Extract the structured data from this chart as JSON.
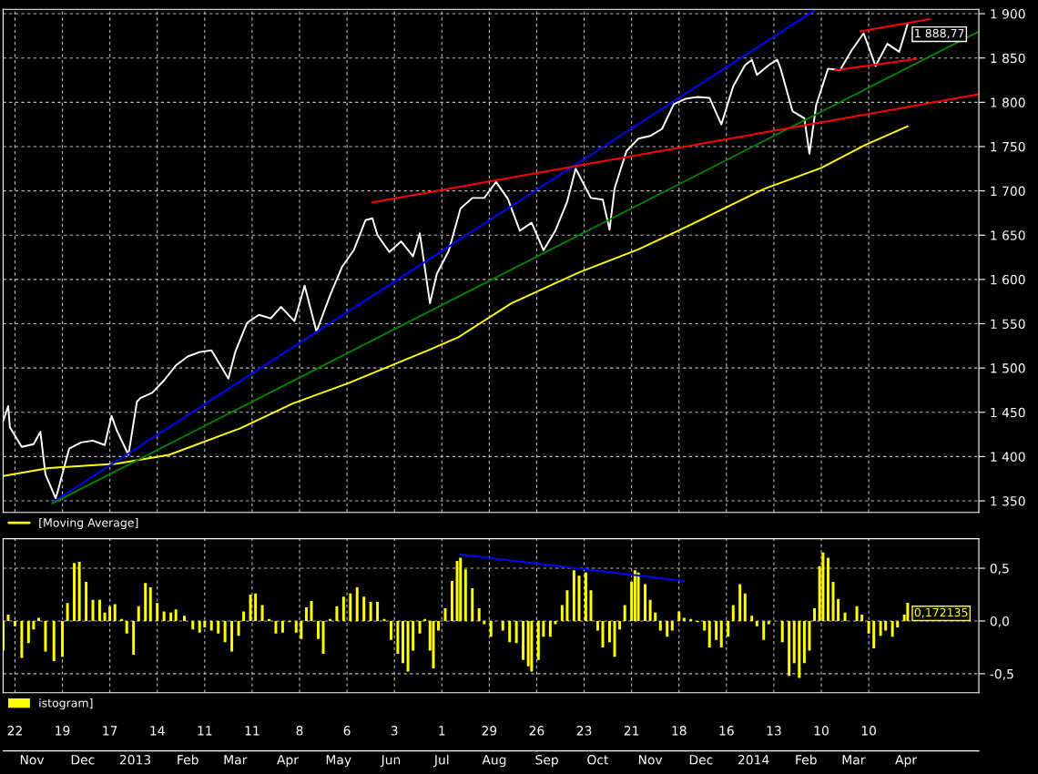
{
  "chart_data": [
    {
      "type": "line",
      "series": [
        {
          "color": "#ffffff",
          "x": [
            "2012-10-15",
            "2012-10-18",
            "2012-10-19",
            "2012-10-26",
            "2012-11-02",
            "2012-11-06",
            "2012-11-09",
            "2012-11-15",
            "2012-11-16",
            "2012-11-23",
            "2012-11-30",
            "2012-12-07",
            "2012-12-14",
            "2012-12-18",
            "2012-12-21",
            "2012-12-28",
            "2013-01-02",
            "2013-01-04",
            "2013-01-11",
            "2013-01-18",
            "2013-01-25",
            "2013-02-01",
            "2013-02-08",
            "2013-02-15",
            "2013-02-25",
            "2013-03-01",
            "2013-03-08",
            "2013-03-15",
            "2013-03-22",
            "2013-03-28",
            "2013-04-05",
            "2013-04-11",
            "2013-04-18",
            "2013-04-26",
            "2013-05-03",
            "2013-05-10",
            "2013-05-17",
            "2013-05-21",
            "2013-05-24",
            "2013-05-31",
            "2013-06-07",
            "2013-06-14",
            "2013-06-18",
            "2013-06-24",
            "2013-06-28",
            "2013-07-05",
            "2013-07-12",
            "2013-07-19",
            "2013-07-26",
            "2013-08-02",
            "2013-08-09",
            "2013-08-16",
            "2013-08-23",
            "2013-08-30",
            "2013-09-06",
            "2013-09-13",
            "2013-09-18",
            "2013-09-27",
            "2013-10-04",
            "2013-10-08",
            "2013-10-11",
            "2013-10-18",
            "2013-10-25",
            "2013-11-01",
            "2013-11-08",
            "2013-11-15",
            "2013-11-22",
            "2013-11-29",
            "2013-12-06",
            "2013-12-13",
            "2013-12-20",
            "2013-12-27",
            "2013-12-31",
            "2014-01-03",
            "2014-01-10",
            "2014-01-15",
            "2014-01-17",
            "2014-01-24",
            "2014-01-31",
            "2014-02-03",
            "2014-02-07",
            "2014-02-14",
            "2014-02-21",
            "2014-02-28",
            "2014-03-07",
            "2014-03-14",
            "2014-03-21",
            "2014-03-28",
            "2014-04-02"
          ],
          "values": [
            1440,
            1457,
            1433,
            1411,
            1414,
            1428,
            1380,
            1353,
            1359,
            1409,
            1416,
            1418,
            1413,
            1446,
            1430,
            1402,
            1462,
            1466,
            1472,
            1486,
            1503,
            1513,
            1518,
            1520,
            1488,
            1518,
            1551,
            1560,
            1556,
            1569,
            1553,
            1593,
            1541,
            1582,
            1614,
            1633,
            1667,
            1669,
            1650,
            1631,
            1643,
            1626,
            1652,
            1573,
            1606,
            1632,
            1680,
            1692,
            1692,
            1710,
            1691,
            1655,
            1664,
            1633,
            1655,
            1688,
            1725,
            1692,
            1690,
            1656,
            1703,
            1745,
            1759,
            1762,
            1770,
            1798,
            1804,
            1806,
            1805,
            1775,
            1818,
            1842,
            1848,
            1831,
            1842,
            1848,
            1838,
            1790,
            1782,
            1742,
            1797,
            1838,
            1836,
            1859,
            1878,
            1841,
            1866,
            1857,
            1888.77
          ]
        },
        {
          "name": "[Moving Average]",
          "color": "#ffff00",
          "x": [
            "2012-10-15",
            "2012-11-11",
            "2012-12-21",
            "2013-01-21",
            "2013-03-04",
            "2013-04-04",
            "2013-05-07",
            "2013-06-23",
            "2013-07-11",
            "2013-08-11",
            "2013-09-20",
            "2013-10-25",
            "2013-11-22",
            "2014-01-07",
            "2014-02-10",
            "2014-03-08",
            "2014-04-02"
          ],
          "values": [
            1378,
            1387,
            1392,
            1402,
            1432,
            1460,
            1483,
            1520,
            1535,
            1573,
            1608,
            1634,
            1659,
            1702,
            1726,
            1752,
            1773
          ]
        },
        {
          "color": "#0000ff",
          "x": [
            "2012-11-13",
            "2014-02-07"
          ],
          "values": [
            1348,
            1905
          ]
        },
        {
          "color": "#008000",
          "x": [
            "2012-11-13",
            "2014-05-14"
          ],
          "values": [
            1347,
            1880
          ]
        },
        {
          "color": "#ff0000",
          "x": [
            "2013-05-21",
            "2014-05-14"
          ],
          "values": [
            1687,
            1809
          ]
        },
        {
          "color": "#ff0000",
          "x": [
            "2014-03-05",
            "2014-04-15"
          ],
          "values": [
            1880,
            1894
          ]
        },
        {
          "color": "#ff0000",
          "x": [
            "2014-02-18",
            "2014-04-07"
          ],
          "values": [
            1836,
            1849
          ]
        }
      ],
      "xlim": [
        "2012-10-15",
        "2014-05-14"
      ],
      "xticks": [
        "2012-10-22",
        "2012-11-19",
        "2012-12-17",
        "2013-01-14",
        "2013-02-11",
        "2013-03-11",
        "2013-04-08",
        "2013-05-06",
        "2013-06-03",
        "2013-07-01",
        "2013-07-29",
        "2013-08-26",
        "2013-09-23",
        "2013-10-21",
        "2013-11-18",
        "2013-12-16",
        "2014-01-13",
        "2014-02-10",
        "2014-03-10"
      ],
      "ylim": [
        1337,
        1905
      ],
      "yticks": [
        {
          "value": 1350,
          "label": "1 350"
        },
        {
          "value": 1400,
          "label": "1 400"
        },
        {
          "value": 1450,
          "label": "1 450"
        },
        {
          "value": 1500,
          "label": "1 500"
        },
        {
          "value": 1550,
          "label": "1 550"
        },
        {
          "value": 1600,
          "label": "1 600"
        },
        {
          "value": 1650,
          "label": "1 650"
        },
        {
          "value": 1700,
          "label": "1 700"
        },
        {
          "value": 1750,
          "label": "1 750"
        },
        {
          "value": 1800,
          "label": "1 800"
        },
        {
          "value": 1850,
          "label": "1 850"
        },
        {
          "value": 1900,
          "label": "1 900"
        }
      ],
      "tick_labels": "y",
      "grid": true,
      "legend": "bottom left",
      "annotations": [
        {
          "text": "1 888,77",
          "x": "2014-04-02",
          "y": 1888.77
        }
      ]
    },
    {
      "type": "bar",
      "series": [
        {
          "name": "istogram]",
          "color": "#ffff00",
          "x": [
            "2012-10-15",
            "2012-10-18",
            "2012-10-22",
            "2012-10-26",
            "2012-10-30",
            "2012-11-02",
            "2012-11-05",
            "2012-11-09",
            "2012-11-14",
            "2012-11-19",
            "2012-11-22",
            "2012-11-26",
            "2012-11-29",
            "2012-12-03",
            "2012-12-07",
            "2012-12-11",
            "2012-12-14",
            "2012-12-17",
            "2012-12-20",
            "2012-12-24",
            "2012-12-27",
            "2012-12-31",
            "2013-01-03",
            "2013-01-07",
            "2013-01-10",
            "2013-01-14",
            "2013-01-18",
            "2013-01-22",
            "2013-01-25",
            "2013-01-30",
            "2013-02-04",
            "2013-02-08",
            "2013-02-11",
            "2013-02-15",
            "2013-02-19",
            "2013-02-23",
            "2013-02-27",
            "2013-03-03",
            "2013-03-06",
            "2013-03-10",
            "2013-03-13",
            "2013-03-17",
            "2013-03-21",
            "2013-03-25",
            "2013-03-29",
            "2013-04-02",
            "2013-04-06",
            "2013-04-09",
            "2013-04-12",
            "2013-04-15",
            "2013-04-19",
            "2013-04-22",
            "2013-04-26",
            "2013-04-30",
            "2013-05-04",
            "2013-05-08",
            "2013-05-12",
            "2013-05-16",
            "2013-05-20",
            "2013-05-24",
            "2013-05-28",
            "2013-06-01",
            "2013-06-05",
            "2013-06-08",
            "2013-06-11",
            "2013-06-14",
            "2013-06-18",
            "2013-06-21",
            "2013-06-24",
            "2013-06-26",
            "2013-06-29",
            "2013-07-03",
            "2013-07-07",
            "2013-07-10",
            "2013-07-12",
            "2013-07-15",
            "2013-07-19",
            "2013-07-23",
            "2013-07-26",
            "2013-07-30",
            "2013-08-02",
            "2013-08-06",
            "2013-08-10",
            "2013-08-14",
            "2013-08-18",
            "2013-08-21",
            "2013-08-23",
            "2013-08-27",
            "2013-08-30",
            "2013-09-03",
            "2013-09-06",
            "2013-09-10",
            "2013-09-13",
            "2013-09-17",
            "2013-09-20",
            "2013-09-24",
            "2013-09-27",
            "2013-10-01",
            "2013-10-04",
            "2013-10-08",
            "2013-10-11",
            "2013-10-14",
            "2013-10-17",
            "2013-10-21",
            "2013-10-23",
            "2013-10-25",
            "2013-10-29",
            "2013-11-01",
            "2013-11-04",
            "2013-11-07",
            "2013-11-11",
            "2013-11-14",
            "2013-11-18",
            "2013-11-21",
            "2013-11-25",
            "2013-11-29",
            "2013-12-03",
            "2013-12-06",
            "2013-12-10",
            "2013-12-13",
            "2013-12-17",
            "2013-12-20",
            "2013-12-24",
            "2013-12-27",
            "2013-12-31",
            "2014-01-03",
            "2014-01-07",
            "2014-01-10",
            "2014-01-15",
            "2014-01-18",
            "2014-01-22",
            "2014-01-25",
            "2014-01-28",
            "2014-01-31",
            "2014-02-03",
            "2014-02-06",
            "2014-02-09",
            "2014-02-11",
            "2014-02-14",
            "2014-02-17",
            "2014-02-20",
            "2014-02-24",
            "2014-02-27",
            "2014-03-03",
            "2014-03-06",
            "2014-03-10",
            "2014-03-13",
            "2014-03-17",
            "2014-03-20",
            "2014-03-24",
            "2014-03-27",
            "2014-03-31",
            "2014-04-02"
          ],
          "values": [
            -0.28,
            0.06,
            -0.05,
            -0.35,
            -0.21,
            -0.08,
            0.03,
            -0.29,
            -0.38,
            -0.34,
            0.17,
            0.55,
            0.56,
            0.37,
            0.2,
            0.2,
            0.08,
            0.14,
            0.16,
            0.02,
            -0.12,
            -0.32,
            0.14,
            0.36,
            0.32,
            0.17,
            0.09,
            0.08,
            0.11,
            0.05,
            -0.08,
            -0.11,
            -0.06,
            -0.09,
            -0.12,
            -0.2,
            -0.29,
            -0.14,
            0.09,
            0.25,
            0.26,
            0.15,
            0.02,
            -0.12,
            -0.11,
            -0.01,
            -0.11,
            -0.17,
            0.13,
            0.19,
            -0.17,
            -0.31,
            0.02,
            0.14,
            0.23,
            0.26,
            0.32,
            0.23,
            0.18,
            0.18,
            0.02,
            -0.18,
            -0.31,
            -0.4,
            -0.48,
            -0.28,
            -0.12,
            0.02,
            -0.28,
            -0.45,
            -0.09,
            0.12,
            0.38,
            0.57,
            0.6,
            0.49,
            0.31,
            0.12,
            -0.03,
            -0.15,
            0.0,
            -0.09,
            -0.2,
            -0.21,
            -0.37,
            -0.43,
            -0.48,
            -0.37,
            -0.15,
            -0.15,
            -0.03,
            0.15,
            0.29,
            0.48,
            0.43,
            0.46,
            0.29,
            -0.09,
            -0.25,
            -0.2,
            -0.34,
            -0.08,
            0.15,
            0.37,
            0.48,
            0.46,
            0.35,
            0.2,
            0.08,
            -0.09,
            -0.15,
            -0.09,
            0.09,
            0.03,
            0.02,
            -0.01,
            -0.09,
            -0.25,
            -0.18,
            -0.25,
            -0.15,
            0.15,
            0.35,
            0.26,
            0.05,
            -0.05,
            -0.18,
            -0.03,
            0.0,
            -0.2,
            -0.52,
            -0.4,
            -0.54,
            -0.4,
            -0.28,
            0.12,
            0.52,
            0.65,
            0.6,
            0.37,
            0.21,
            0.08,
            0.0,
            0.14,
            0.06,
            -0.12,
            -0.26,
            -0.14,
            -0.09,
            -0.15,
            -0.06,
            0.06,
            0.172135
          ]
        },
        {
          "type": "line",
          "color": "#0000ff",
          "x": [
            "2013-07-12",
            "2013-11-21"
          ],
          "values": [
            0.63,
            0.38
          ]
        }
      ],
      "xlim": [
        "2012-10-15",
        "2014-05-14"
      ],
      "xticks": [
        {
          "value": "2012-10-22",
          "label": "22"
        },
        {
          "value": "2012-11-19",
          "label": "19"
        },
        {
          "value": "2012-12-17",
          "label": "17"
        },
        {
          "value": "2013-01-14",
          "label": "14"
        },
        {
          "value": "2013-02-11",
          "label": "11"
        },
        {
          "value": "2013-03-11",
          "label": "11"
        },
        {
          "value": "2013-04-08",
          "label": "8"
        },
        {
          "value": "2013-05-06",
          "label": "6"
        },
        {
          "value": "2013-06-03",
          "label": "3"
        },
        {
          "value": "2013-07-01",
          "label": "1"
        },
        {
          "value": "2013-07-29",
          "label": "29"
        },
        {
          "value": "2013-08-26",
          "label": "26"
        },
        {
          "value": "2013-09-23",
          "label": "23"
        },
        {
          "value": "2013-10-21",
          "label": "21"
        },
        {
          "value": "2013-11-18",
          "label": "18"
        },
        {
          "value": "2013-12-16",
          "label": "16"
        },
        {
          "value": "2014-01-13",
          "label": "13"
        },
        {
          "value": "2014-02-10",
          "label": "10"
        },
        {
          "value": "2014-03-10",
          "label": "10"
        }
      ],
      "x2lim": [
        "2012-10-15",
        "2014-05-14"
      ],
      "x2ticks": [
        {
          "value": "2012-11-01",
          "label": "Nov"
        },
        {
          "value": "2012-12-01",
          "label": "Dec"
        },
        {
          "value": "2013-01-01",
          "label": "2013"
        },
        {
          "value": "2013-02-01",
          "label": "Feb"
        },
        {
          "value": "2013-03-01",
          "label": "Mar"
        },
        {
          "value": "2013-04-01",
          "label": "Apr"
        },
        {
          "value": "2013-05-01",
          "label": "May"
        },
        {
          "value": "2013-06-01",
          "label": "Jun"
        },
        {
          "value": "2013-07-01",
          "label": "Jul"
        },
        {
          "value": "2013-08-01",
          "label": "Aug"
        },
        {
          "value": "2013-09-01",
          "label": "Sep"
        },
        {
          "value": "2013-10-01",
          "label": "Oct"
        },
        {
          "value": "2013-11-01",
          "label": "Nov"
        },
        {
          "value": "2013-12-01",
          "label": "Dec"
        },
        {
          "value": "2014-01-01",
          "label": "2014"
        },
        {
          "value": "2014-02-01",
          "label": "Feb"
        },
        {
          "value": "2014-03-01",
          "label": "Mar"
        },
        {
          "value": "2014-04-01",
          "label": "Apr"
        }
      ],
      "ylim": [
        -0.68,
        0.78
      ],
      "yticks": [
        {
          "value": -0.5,
          "label": "-0,5"
        },
        {
          "value": 0,
          "label": "0,0"
        },
        {
          "value": 0.5,
          "label": "0,5"
        }
      ],
      "grid": true,
      "legend": "bottom left",
      "annotations": [
        {
          "text": "0,172135",
          "x": "2014-04-02",
          "y": 0.172135
        }
      ]
    }
  ]
}
